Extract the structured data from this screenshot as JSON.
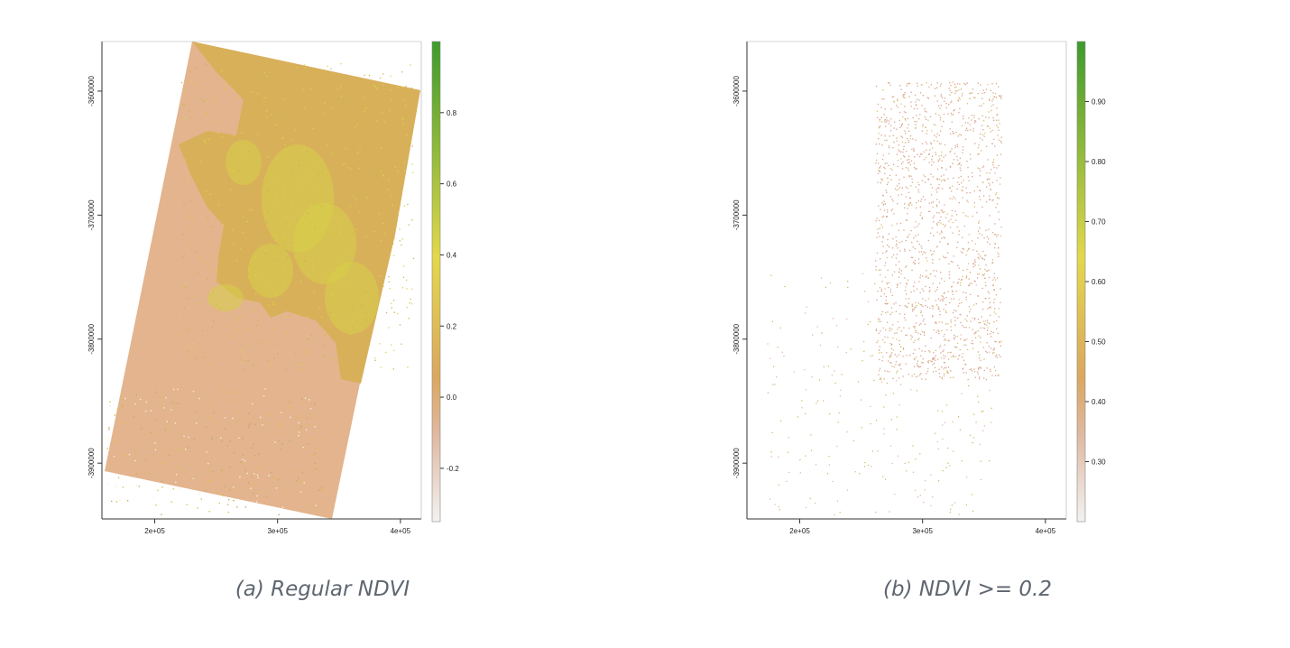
{
  "chart_data": [
    {
      "type": "heatmap",
      "caption": "(a) Regular NDVI",
      "x_ticks": [
        "2e+05",
        "3e+05",
        "4e+05"
      ],
      "x_tick_values": [
        200000,
        300000,
        400000
      ],
      "y_ticks": [
        "-3600000",
        "-3700000",
        "-3800000",
        "-3900000"
      ],
      "y_tick_values": [
        -3600000,
        -3700000,
        -3800000,
        -3900000
      ],
      "xlim": [
        157000,
        417000
      ],
      "ylim": [
        -3945000,
        -3560000
      ],
      "legend": {
        "ticks": [
          "0.8",
          "0.6",
          "0.4",
          "0.2",
          "0.0",
          "-0.2"
        ],
        "tick_values": [
          0.8,
          0.6,
          0.4,
          0.2,
          0.0,
          -0.2
        ],
        "range": [
          -0.35,
          1.0
        ]
      },
      "colors": {
        "low": "#f2f2f2",
        "mid_low": "#e0b9a2",
        "mid": "#dba75f",
        "mid_high": "#e3d84a",
        "high": "#3d9b2b"
      }
    },
    {
      "type": "heatmap",
      "caption": "(b) NDVI >= 0.2",
      "x_ticks": [
        "2e+05",
        "3e+05",
        "4e+05"
      ],
      "x_tick_values": [
        200000,
        300000,
        400000
      ],
      "y_ticks": [
        "-3600000",
        "-3700000",
        "-3800000",
        "-3900000"
      ],
      "y_tick_values": [
        -3600000,
        -3700000,
        -3800000,
        -3900000
      ],
      "xlim": [
        157000,
        417000
      ],
      "ylim": [
        -3945000,
        -3560000
      ],
      "legend": {
        "ticks": [
          "0.90",
          "0.80",
          "0.70",
          "0.60",
          "0.50",
          "0.40",
          "0.30"
        ],
        "tick_values": [
          0.9,
          0.8,
          0.7,
          0.6,
          0.5,
          0.4,
          0.3
        ],
        "range": [
          0.2,
          1.0
        ]
      },
      "colors": {
        "low": "#f2f2f2",
        "mid_low": "#e0b9a2",
        "mid": "#dba75f",
        "mid_high": "#e3d84a",
        "high": "#3d9b2b"
      }
    }
  ]
}
